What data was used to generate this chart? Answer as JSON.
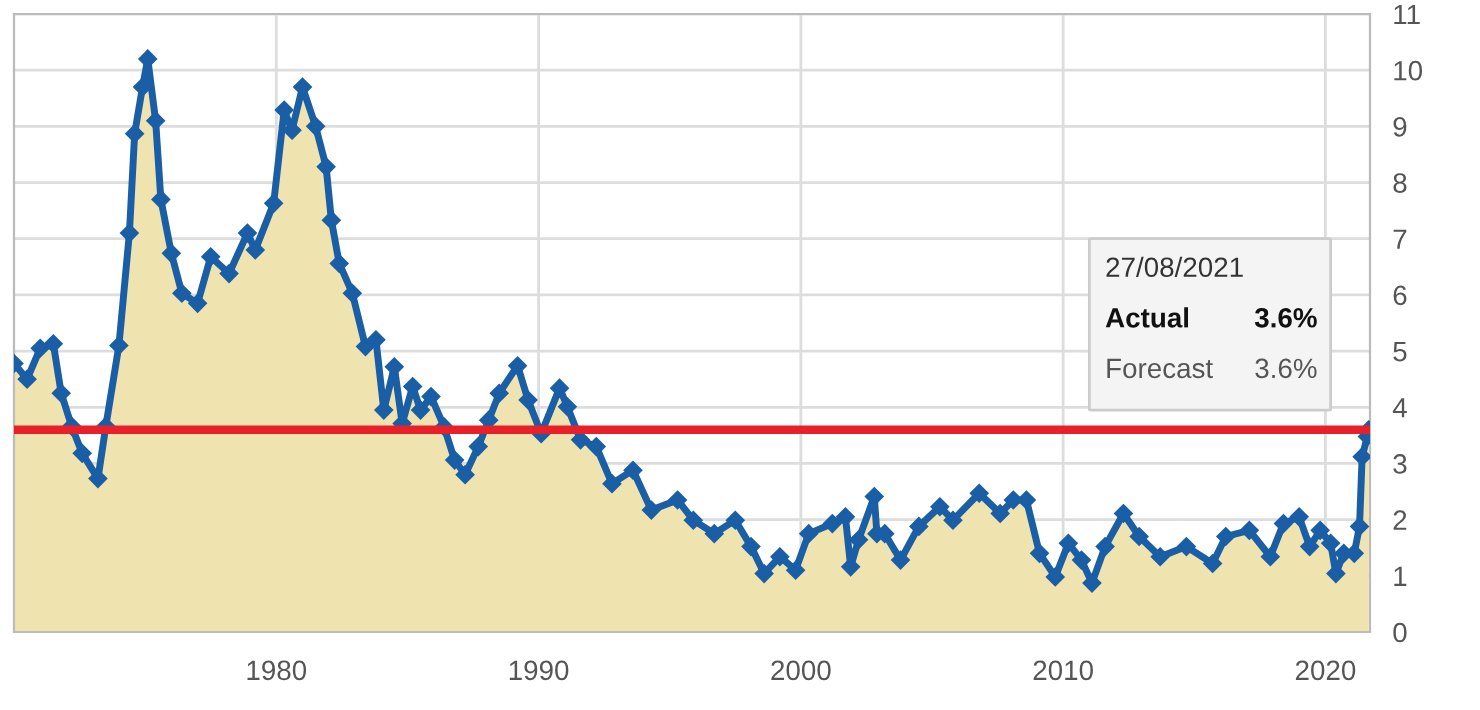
{
  "chart_data": {
    "type": "line",
    "x": [
      1970.0,
      1970.5,
      1971.0,
      1971.5,
      1971.8,
      1972.2,
      1972.6,
      1973.2,
      1973.5,
      1974.0,
      1974.4,
      1974.6,
      1974.9,
      1975.1,
      1975.4,
      1975.6,
      1976.0,
      1976.4,
      1977.0,
      1977.5,
      1978.2,
      1978.9,
      1979.2,
      1979.9,
      1980.3,
      1980.6,
      1981.0,
      1981.5,
      1981.9,
      1982.1,
      1982.4,
      1982.9,
      1983.4,
      1983.8,
      1984.1,
      1984.5,
      1984.8,
      1985.2,
      1985.5,
      1985.9,
      1986.4,
      1986.8,
      1987.2,
      1987.7,
      1988.1,
      1988.5,
      1989.2,
      1989.6,
      1990.1,
      1990.8,
      1991.1,
      1991.6,
      1992.2,
      1992.8,
      1993.6,
      1994.3,
      1995.3,
      1995.9,
      1996.7,
      1997.5,
      1998.1,
      1998.6,
      1999.2,
      1999.8,
      2000.3,
      2001.2,
      2001.7,
      2001.9,
      2002.2,
      2002.8,
      2002.9,
      2003.2,
      2003.8,
      2004.5,
      2005.3,
      2005.8,
      2006.8,
      2007.6,
      2008.1,
      2008.6,
      2009.1,
      2009.7,
      2010.2,
      2010.7,
      2011.1,
      2011.6,
      2012.3,
      2012.9,
      2013.7,
      2014.7,
      2015.7,
      2016.2,
      2017.1,
      2017.9,
      2018.4,
      2019.0,
      2019.4,
      2019.8,
      2020.2,
      2020.4,
      2020.7,
      2021.1,
      2021.3,
      2021.4,
      2021.6,
      2021.65
    ],
    "series": [
      {
        "type": "area",
        "color": "#efe3b0",
        "values": [
          4.78,
          4.5,
          5.05,
          5.13,
          4.25,
          3.66,
          3.18,
          2.73,
          3.66,
          5.1,
          7.1,
          8.87,
          9.7,
          10.2,
          9.1,
          7.7,
          6.74,
          6.03,
          5.85,
          6.68,
          6.38,
          7.1,
          6.8,
          7.63,
          9.29,
          8.93,
          9.7,
          9.0,
          8.28,
          7.33,
          6.56,
          6.03,
          5.08,
          5.2,
          3.95,
          4.72,
          3.71,
          4.37,
          3.95,
          4.19,
          3.65,
          3.06,
          2.8,
          3.3,
          3.77,
          4.25,
          4.74,
          4.13,
          3.53,
          4.34,
          4.01,
          3.42,
          3.3,
          2.64,
          2.88,
          2.17,
          2.35,
          1.99,
          1.75,
          1.99,
          1.52,
          1.04,
          1.34,
          1.1,
          1.75,
          1.93,
          2.05,
          1.16,
          1.64,
          2.41,
          1.75,
          1.75,
          1.28,
          1.88,
          2.23,
          1.99,
          2.47,
          2.11,
          2.35,
          2.35,
          1.4,
          0.98,
          1.58,
          1.28,
          0.87,
          1.52,
          2.11,
          1.7,
          1.34,
          1.52,
          1.22,
          1.7,
          1.81,
          1.34,
          1.93,
          2.05,
          1.52,
          1.81,
          1.58,
          1.04,
          1.4,
          1.4,
          1.88,
          3.12,
          3.48,
          3.6
        ]
      },
      {
        "color": "#1a5ea6",
        "marker": "diamond",
        "values": [
          4.78,
          4.5,
          5.05,
          5.13,
          4.25,
          3.66,
          3.18,
          2.73,
          3.66,
          5.1,
          7.1,
          8.87,
          9.7,
          10.2,
          9.1,
          7.7,
          6.74,
          6.03,
          5.85,
          6.68,
          6.38,
          7.1,
          6.8,
          7.63,
          9.29,
          8.93,
          9.7,
          9.0,
          8.28,
          7.33,
          6.56,
          6.03,
          5.08,
          5.2,
          3.95,
          4.72,
          3.71,
          4.37,
          3.95,
          4.19,
          3.65,
          3.06,
          2.8,
          3.3,
          3.77,
          4.25,
          4.74,
          4.13,
          3.53,
          4.34,
          4.01,
          3.42,
          3.3,
          2.64,
          2.88,
          2.17,
          2.35,
          1.99,
          1.75,
          1.99,
          1.52,
          1.04,
          1.34,
          1.1,
          1.75,
          1.93,
          2.05,
          1.16,
          1.64,
          2.41,
          1.75,
          1.75,
          1.28,
          1.88,
          2.23,
          1.99,
          2.47,
          2.11,
          2.35,
          2.35,
          1.4,
          0.98,
          1.58,
          1.28,
          0.87,
          1.52,
          2.11,
          1.7,
          1.34,
          1.52,
          1.22,
          1.7,
          1.81,
          1.34,
          1.93,
          2.05,
          1.52,
          1.81,
          1.58,
          1.04,
          1.4,
          1.4,
          1.88,
          3.12,
          3.48,
          3.6
        ]
      }
    ],
    "xlim": [
      1970,
      2021.7
    ],
    "ylim": [
      0,
      11
    ],
    "xticks": [
      1980,
      1990,
      2000,
      2010,
      2020
    ],
    "yticks": [
      0,
      1,
      2,
      3,
      4,
      5,
      6,
      7,
      8,
      9,
      10,
      11
    ],
    "grid": true,
    "line_style": "solid",
    "legend": false,
    "ref_lines": [
      {
        "axis": "y",
        "value": 3.6,
        "color": "#e8202a"
      }
    ],
    "annotations": [
      "27/08/2021",
      "Actual",
      "3.6%",
      "Forecast",
      "3.6%"
    ]
  }
}
